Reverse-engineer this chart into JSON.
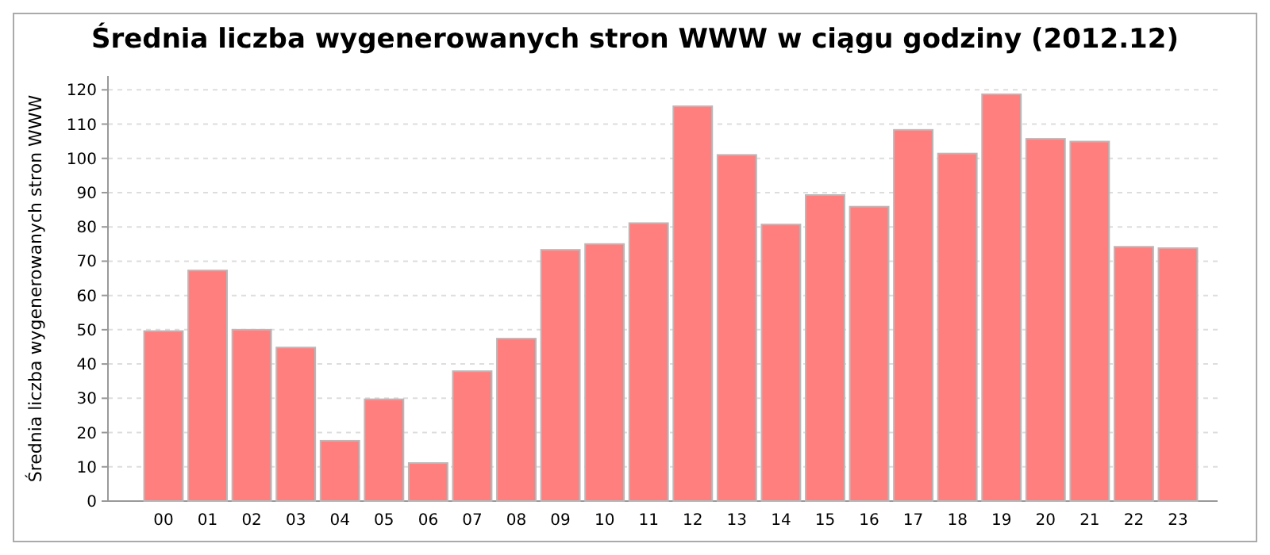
{
  "chart_data": {
    "type": "bar",
    "title": "Średnia liczba wygenerowanych stron WWW w ciągu godziny (2012.12)",
    "ylabel": "Średnia liczba wygenerowanych stron WWW",
    "categories": [
      "00",
      "01",
      "02",
      "03",
      "04",
      "05",
      "06",
      "07",
      "08",
      "09",
      "10",
      "11",
      "12",
      "13",
      "14",
      "15",
      "16",
      "17",
      "18",
      "19",
      "20",
      "21",
      "22",
      "23"
    ],
    "values": [
      49.6,
      67.3,
      50,
      44.8,
      17.6,
      29.7,
      11.1,
      37.9,
      47.4,
      73.3,
      75,
      81.1,
      115.2,
      101,
      80.7,
      89.3,
      85.9,
      108.3,
      101.4,
      118.7,
      105.7,
      104.9,
      74.2,
      73.8
    ],
    "color": "#ff7f7f",
    "ylim": [
      0,
      124
    ],
    "yticks": [
      0,
      10,
      20,
      30,
      40,
      50,
      60,
      70,
      80,
      90,
      100,
      110,
      120
    ],
    "grid": "y"
  }
}
